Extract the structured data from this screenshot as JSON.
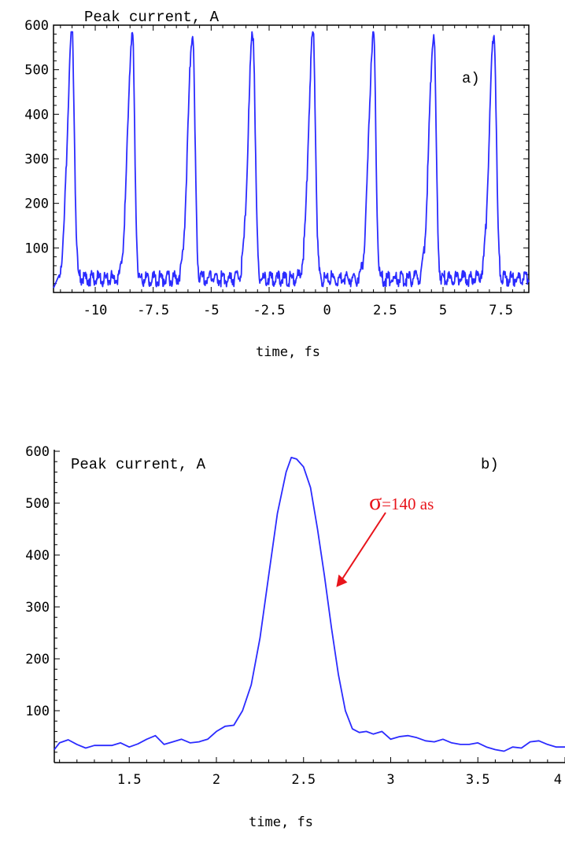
{
  "colors": {
    "line": "#2b2bff",
    "annotation": "#e8141b",
    "frame": "#000000"
  },
  "chart_data": [
    {
      "type": "line",
      "title": "Peak current, A",
      "panel_label": "a)",
      "xlabel": "time, fs",
      "ylabel": "",
      "xlim": [
        -11.8,
        8.7
      ],
      "ylim": [
        0,
        600
      ],
      "xticks": [
        -10,
        -7.5,
        -5,
        -2.5,
        0,
        2.5,
        5,
        7.5
      ],
      "xtick_labels": [
        "-10",
        "-7.5",
        "-5",
        "-2.5",
        "0",
        "2.5",
        "5",
        "7.5"
      ],
      "yticks": [
        100,
        200,
        300,
        400,
        500,
        600
      ],
      "ytick_labels": [
        "100",
        "200",
        "300",
        "400",
        "500",
        "600"
      ],
      "frame": "box",
      "pulses": {
        "centers": [
          -11.0,
          -8.4,
          -5.8,
          -3.2,
          -0.6,
          2.0,
          4.6,
          7.2
        ],
        "peak": 585,
        "baseline": 35,
        "sigma_left": 0.2,
        "sigma_right": 0.1
      },
      "series": [
        {
          "x": [
            -11.8,
            -11.0,
            -10.5,
            -9.5,
            -8.4,
            -7.9,
            -6.9,
            -5.8,
            -5.3,
            -4.3,
            -3.2,
            -2.7,
            -1.6,
            -0.6,
            -0.1,
            1.0,
            2.0,
            2.5,
            3.6,
            4.6,
            5.1,
            6.2,
            7.2,
            7.7,
            8.7
          ],
          "y": [
            10,
            585,
            50,
            30,
            585,
            55,
            28,
            585,
            55,
            30,
            585,
            60,
            35,
            585,
            50,
            35,
            585,
            55,
            32,
            585,
            55,
            35,
            585,
            60,
            45
          ]
        }
      ]
    },
    {
      "type": "line",
      "title": "Peak current, A",
      "panel_label": "b)",
      "xlabel": "time, fs",
      "ylabel": "",
      "xlim": [
        1.07,
        4.0
      ],
      "ylim": [
        0,
        600
      ],
      "xticks": [
        1.5,
        2,
        2.5,
        3,
        3.5,
        4
      ],
      "xtick_labels": [
        "1.5",
        "2",
        "2.5",
        "3",
        "3.5",
        "4"
      ],
      "yticks": [
        100,
        200,
        300,
        400,
        500,
        600
      ],
      "ytick_labels": [
        "100",
        "200",
        "300",
        "400",
        "500",
        "600"
      ],
      "frame": "axes",
      "annotation": {
        "symbol": "σ",
        "text": "=140 as",
        "target": [
          2.67,
          320
        ]
      },
      "series": [
        {
          "x": [
            1.07,
            1.1,
            1.15,
            1.2,
            1.25,
            1.3,
            1.35,
            1.4,
            1.45,
            1.5,
            1.55,
            1.6,
            1.65,
            1.7,
            1.75,
            1.8,
            1.85,
            1.9,
            1.95,
            2.0,
            2.05,
            2.1,
            2.15,
            2.2,
            2.25,
            2.3,
            2.35,
            2.4,
            2.43,
            2.46,
            2.5,
            2.54,
            2.58,
            2.62,
            2.66,
            2.7,
            2.74,
            2.78,
            2.82,
            2.86,
            2.9,
            2.95,
            3.0,
            3.05,
            3.1,
            3.15,
            3.2,
            3.25,
            3.3,
            3.35,
            3.4,
            3.45,
            3.5,
            3.55,
            3.6,
            3.65,
            3.7,
            3.75,
            3.8,
            3.85,
            3.9,
            3.95,
            4.0
          ],
          "y": [
            25,
            38,
            44,
            35,
            28,
            33,
            33,
            33,
            38,
            30,
            36,
            45,
            52,
            35,
            40,
            45,
            38,
            40,
            45,
            60,
            70,
            72,
            100,
            150,
            240,
            360,
            480,
            560,
            588,
            585,
            570,
            530,
            450,
            360,
            260,
            170,
            100,
            65,
            58,
            60,
            55,
            60,
            45,
            50,
            52,
            48,
            42,
            40,
            45,
            38,
            35,
            35,
            38,
            30,
            25,
            22,
            30,
            28,
            40,
            42,
            35,
            30,
            30
          ]
        }
      ]
    }
  ]
}
